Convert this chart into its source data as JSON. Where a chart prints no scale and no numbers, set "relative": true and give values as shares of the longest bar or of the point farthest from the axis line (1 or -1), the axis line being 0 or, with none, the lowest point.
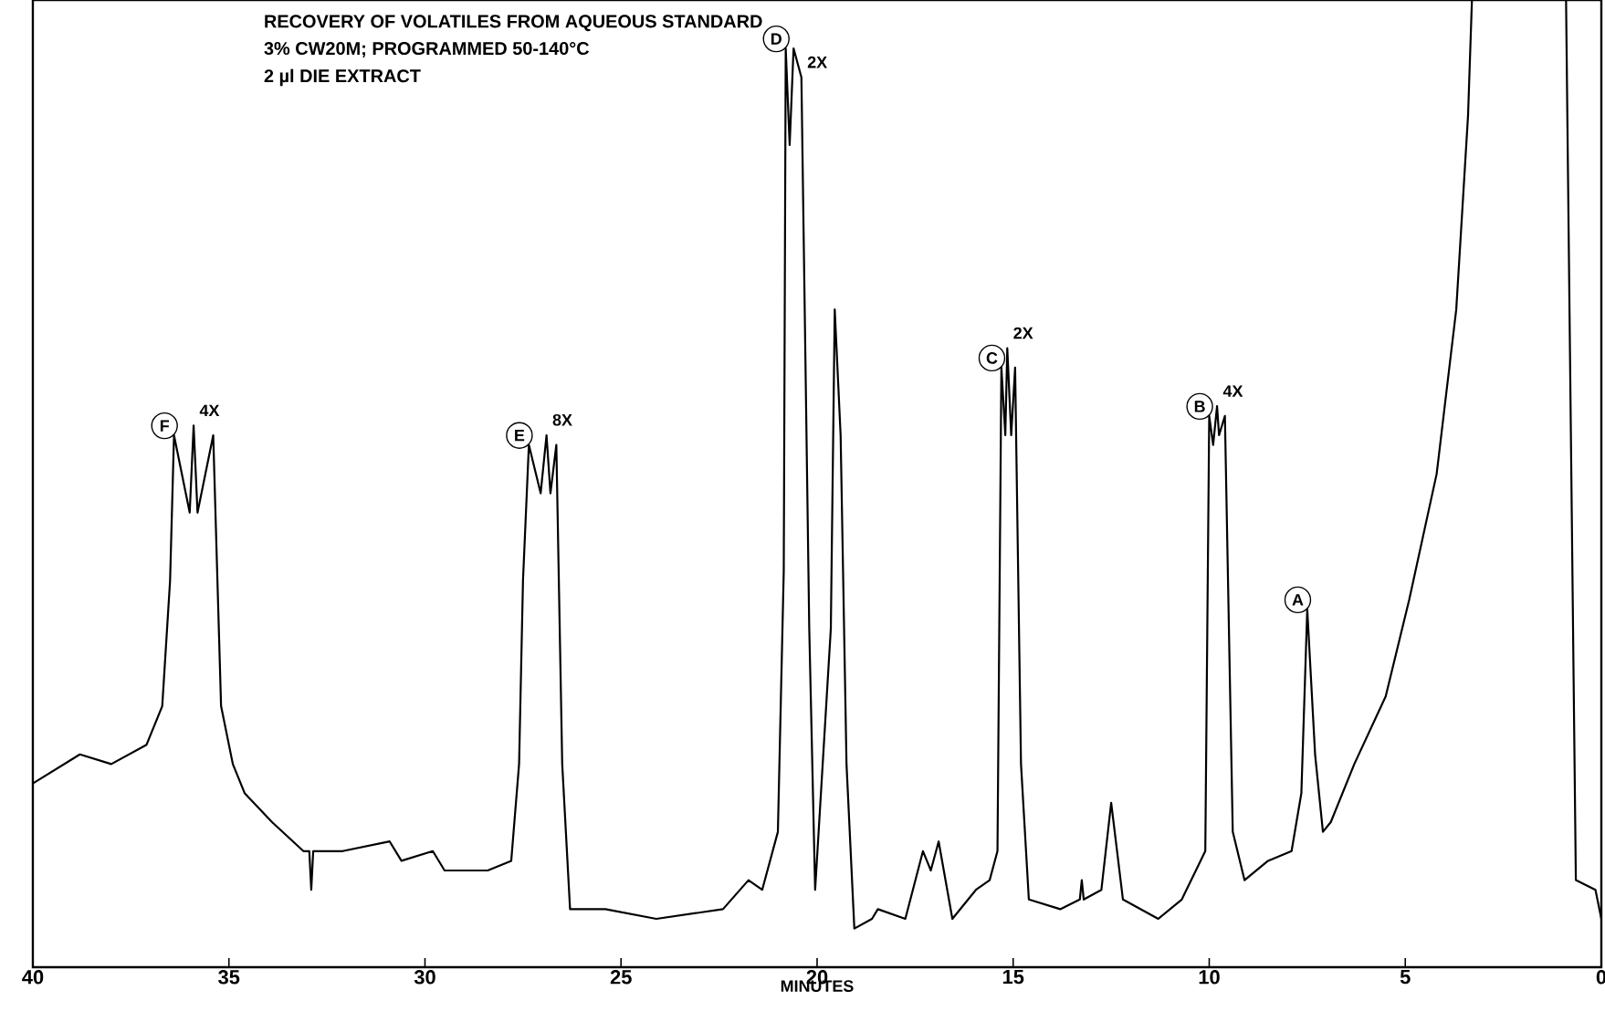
{
  "chart_data": {
    "type": "line",
    "relative": true,
    "title": "RECOVERY OF VOLATILES FROM AQUEOUS STANDARD",
    "subtitle": "3% CW20M; PROGRAMMED 50-140°C",
    "xlabel": "MINUTES",
    "xlim": [
      40,
      0
    ],
    "xticks": [
      40,
      35,
      30,
      25,
      20,
      15,
      10,
      5,
      0
    ],
    "color": "#000000",
    "x": [
      40,
      38.8,
      38.0,
      37.1,
      36.7,
      36.5,
      36.4,
      36.0,
      35.9,
      35.8,
      35.4,
      35.2,
      34.9,
      34.6,
      33.9,
      33.1,
      32.95,
      32.9,
      32.85,
      32.1,
      30.9,
      30.6,
      29.8,
      29.5,
      28.4,
      27.8,
      27.6,
      27.5,
      27.35,
      27.05,
      26.9,
      26.8,
      26.65,
      26.5,
      26.3,
      25.4,
      24.1,
      22.4,
      21.75,
      21.4,
      21.0,
      20.85,
      20.8,
      20.7,
      20.6,
      20.4,
      20.2,
      20.05,
      19.65,
      19.55,
      19.4,
      19.25,
      19.05,
      18.6,
      18.45,
      17.75,
      17.3,
      17.1,
      16.9,
      16.55,
      15.95,
      15.6,
      15.4,
      15.3,
      15.2,
      15.15,
      15.05,
      14.95,
      14.8,
      14.6,
      13.8,
      13.3,
      13.25,
      13.2,
      12.75,
      12.5,
      12.2,
      11.3,
      10.7,
      10.1,
      10.0,
      9.9,
      9.8,
      9.75,
      9.6,
      9.4,
      9.1,
      8.5,
      7.9,
      7.65,
      7.5,
      7.3,
      7.1,
      6.9,
      6.3,
      5.5,
      4.9,
      4.2,
      3.7,
      3.4,
      3.3,
      0.9,
      0.65,
      0.15,
      0
    ],
    "values": [
      0.19,
      0.22,
      0.21,
      0.23,
      0.27,
      0.4,
      0.55,
      0.47,
      0.56,
      0.47,
      0.55,
      0.27,
      0.21,
      0.18,
      0.15,
      0.12,
      0.12,
      0.08,
      0.12,
      0.12,
      0.13,
      0.11,
      0.12,
      0.1,
      0.1,
      0.11,
      0.21,
      0.4,
      0.54,
      0.49,
      0.55,
      0.49,
      0.54,
      0.21,
      0.06,
      0.06,
      0.05,
      0.06,
      0.09,
      0.08,
      0.14,
      0.41,
      0.95,
      0.85,
      0.95,
      0.92,
      0.35,
      0.08,
      0.35,
      0.68,
      0.55,
      0.21,
      0.04,
      0.05,
      0.06,
      0.05,
      0.12,
      0.1,
      0.13,
      0.05,
      0.08,
      0.09,
      0.12,
      0.62,
      0.55,
      0.64,
      0.55,
      0.62,
      0.21,
      0.07,
      0.06,
      0.07,
      0.09,
      0.07,
      0.08,
      0.17,
      0.07,
      0.05,
      0.07,
      0.12,
      0.57,
      0.54,
      0.58,
      0.55,
      0.57,
      0.14,
      0.09,
      0.11,
      0.12,
      0.18,
      0.37,
      0.22,
      0.14,
      0.15,
      0.21,
      0.28,
      0.38,
      0.51,
      0.68,
      0.88,
      1,
      1,
      0.09,
      0.08,
      0.05
    ],
    "annotations": [
      "2 µl DIE EXTRACT",
      {
        "text": "F",
        "x": 36.4,
        "y": 0.55
      },
      {
        "text": "4X",
        "x": 35.9,
        "y": 0.56
      },
      {
        "text": "E",
        "x": 27.35,
        "y": 0.54
      },
      {
        "text": "8X",
        "x": 26.9,
        "y": 0.55
      },
      {
        "text": "D",
        "x": 20.8,
        "y": 0.95
      },
      {
        "text": "2X",
        "x": 20.4,
        "y": 0.92
      },
      {
        "text": "C",
        "x": 15.3,
        "y": 0.62
      },
      {
        "text": "2X",
        "x": 15.15,
        "y": 0.64
      },
      {
        "text": "B",
        "x": 10.0,
        "y": 0.57
      },
      {
        "text": "4X",
        "x": 9.8,
        "y": 0.58
      },
      {
        "text": "A",
        "x": 7.5,
        "y": 0.37
      }
    ]
  }
}
